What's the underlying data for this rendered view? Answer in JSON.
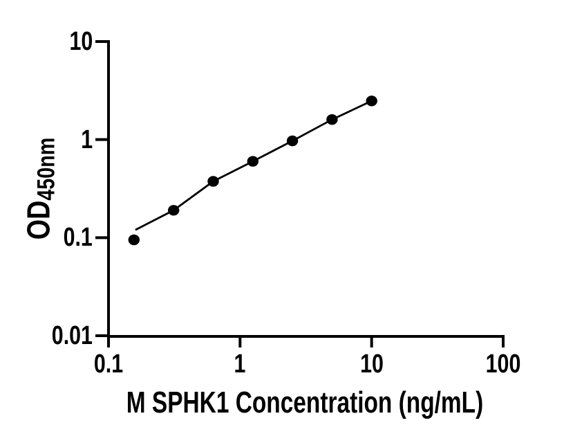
{
  "figure": {
    "background": "#ffffff",
    "ink_color": "#000000"
  },
  "chart_data": {
    "type": "scatter",
    "title": "",
    "xlabel": "M SPHK1 Concentration (ng/mL)",
    "ylabel_main": "OD",
    "ylabel_subscript": "450nm",
    "x_scale": "log",
    "y_scale": "log",
    "xlim": [
      0.1,
      100
    ],
    "ylim": [
      0.01,
      10
    ],
    "x_ticks": [
      0.1,
      1,
      10,
      100
    ],
    "x_tick_labels": [
      "0.1",
      "1",
      "10",
      "100"
    ],
    "y_ticks": [
      10,
      1,
      0.1,
      0.01
    ],
    "y_tick_labels": [
      "10",
      "1",
      "0.1",
      "0.01"
    ],
    "grid": false,
    "legend": "none",
    "series": [
      {
        "name": "standard curve measured points",
        "marker": "filled-circle",
        "color": "#000000",
        "x": [
          0.156,
          0.3125,
          0.625,
          1.25,
          2.5,
          5,
          10
        ],
        "y": [
          0.095,
          0.19,
          0.375,
          0.6,
          0.97,
          1.6,
          2.48
        ]
      }
    ],
    "fit_line": {
      "name": "fitted standard curve",
      "color": "#000000",
      "x": [
        0.16,
        0.3125,
        0.625,
        1.25,
        2.5,
        5,
        10
      ],
      "y": [
        0.12,
        0.19,
        0.375,
        0.6,
        0.97,
        1.6,
        2.48
      ]
    }
  }
}
